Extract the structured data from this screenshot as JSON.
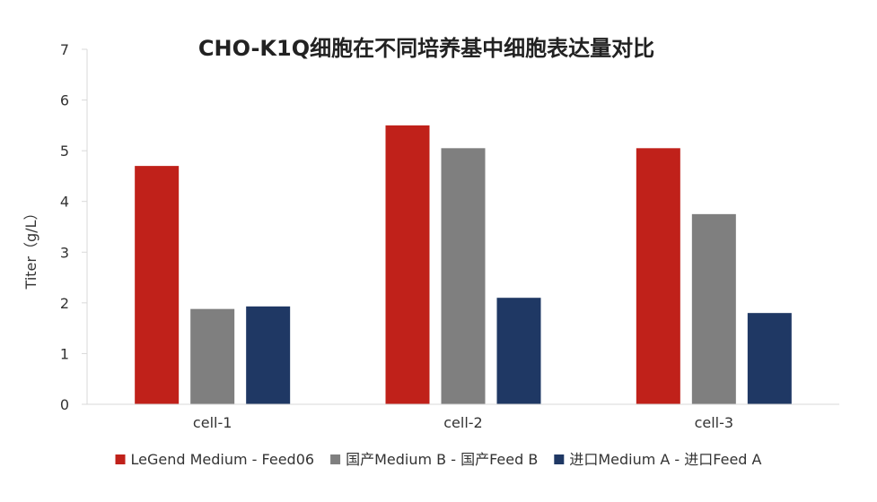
{
  "chart_data": {
    "type": "bar",
    "title": "CHO-K1Q细胞在不同培养基中细胞表达量对比",
    "xlabel": "",
    "ylabel": "Titer（g/L）",
    "ylim": [
      0,
      7
    ],
    "yticks": [
      0,
      1,
      2,
      3,
      4,
      5,
      6,
      7
    ],
    "grid": false,
    "legend_position": "bottom",
    "categories": [
      "cell-1",
      "cell-2",
      "cell-3"
    ],
    "series": [
      {
        "name": "LeGend Medium - Feed06",
        "color": "#C0211A",
        "values": [
          4.7,
          5.5,
          5.05
        ]
      },
      {
        "name": "国产Medium B - 国产Feed B",
        "color": "#7F7F7F",
        "values": [
          1.88,
          5.05,
          3.75
        ]
      },
      {
        "name": "进口Medium A - 进口Feed A",
        "color": "#1F3864",
        "values": [
          1.93,
          2.1,
          1.8
        ]
      }
    ]
  }
}
